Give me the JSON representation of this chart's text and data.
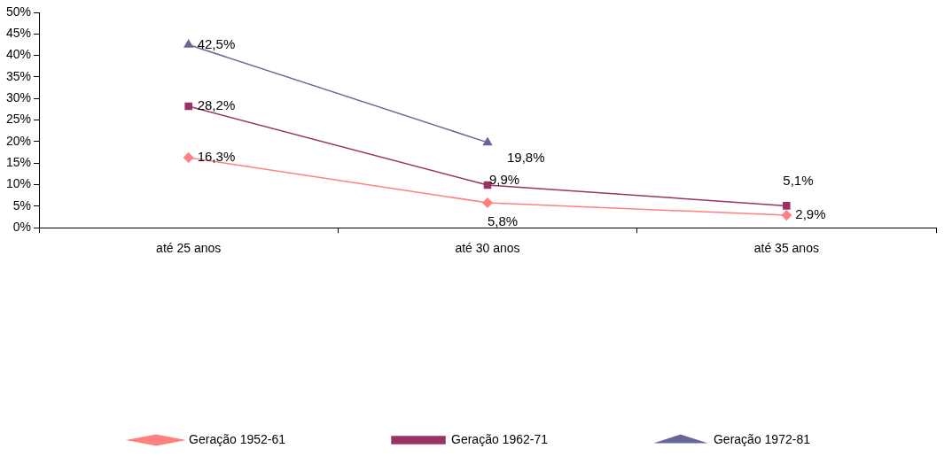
{
  "chart_data": {
    "type": "line",
    "categories": [
      "até 25 anos",
      "até 30 anos",
      "até 35 anos"
    ],
    "series": [
      {
        "name": "Geração 1952-61",
        "color": "#ff8080",
        "marker": "diamond",
        "values": [
          16.3,
          5.8,
          2.9
        ],
        "value_labels": [
          "16,3%",
          "5,8%",
          "2,9%"
        ]
      },
      {
        "name": "Geração 1962-71",
        "color": "#993366",
        "marker": "square",
        "values": [
          28.2,
          9.9,
          5.1
        ],
        "value_labels": [
          "28,2%",
          "9,9%",
          "5,1%"
        ]
      },
      {
        "name": "Geração 1972-81",
        "color": "#666699",
        "marker": "triangle",
        "values": [
          42.5,
          19.8,
          null
        ],
        "value_labels": [
          "42,5%",
          "19,8%",
          null
        ]
      }
    ],
    "ylim": [
      0,
      50
    ],
    "yticks": [
      {
        "value": 0,
        "label": "0%"
      },
      {
        "value": 5,
        "label": "5%"
      },
      {
        "value": 10,
        "label": "10%"
      },
      {
        "value": 15,
        "label": "15%"
      },
      {
        "value": 20,
        "label": "20%"
      },
      {
        "value": 25,
        "label": "25%"
      },
      {
        "value": 30,
        "label": "30%"
      },
      {
        "value": 35,
        "label": "35%"
      },
      {
        "value": 40,
        "label": "40%"
      },
      {
        "value": 45,
        "label": "45%"
      },
      {
        "value": 50,
        "label": "50%"
      }
    ],
    "grid": false,
    "legend": "bottom",
    "line_style": "solid"
  }
}
